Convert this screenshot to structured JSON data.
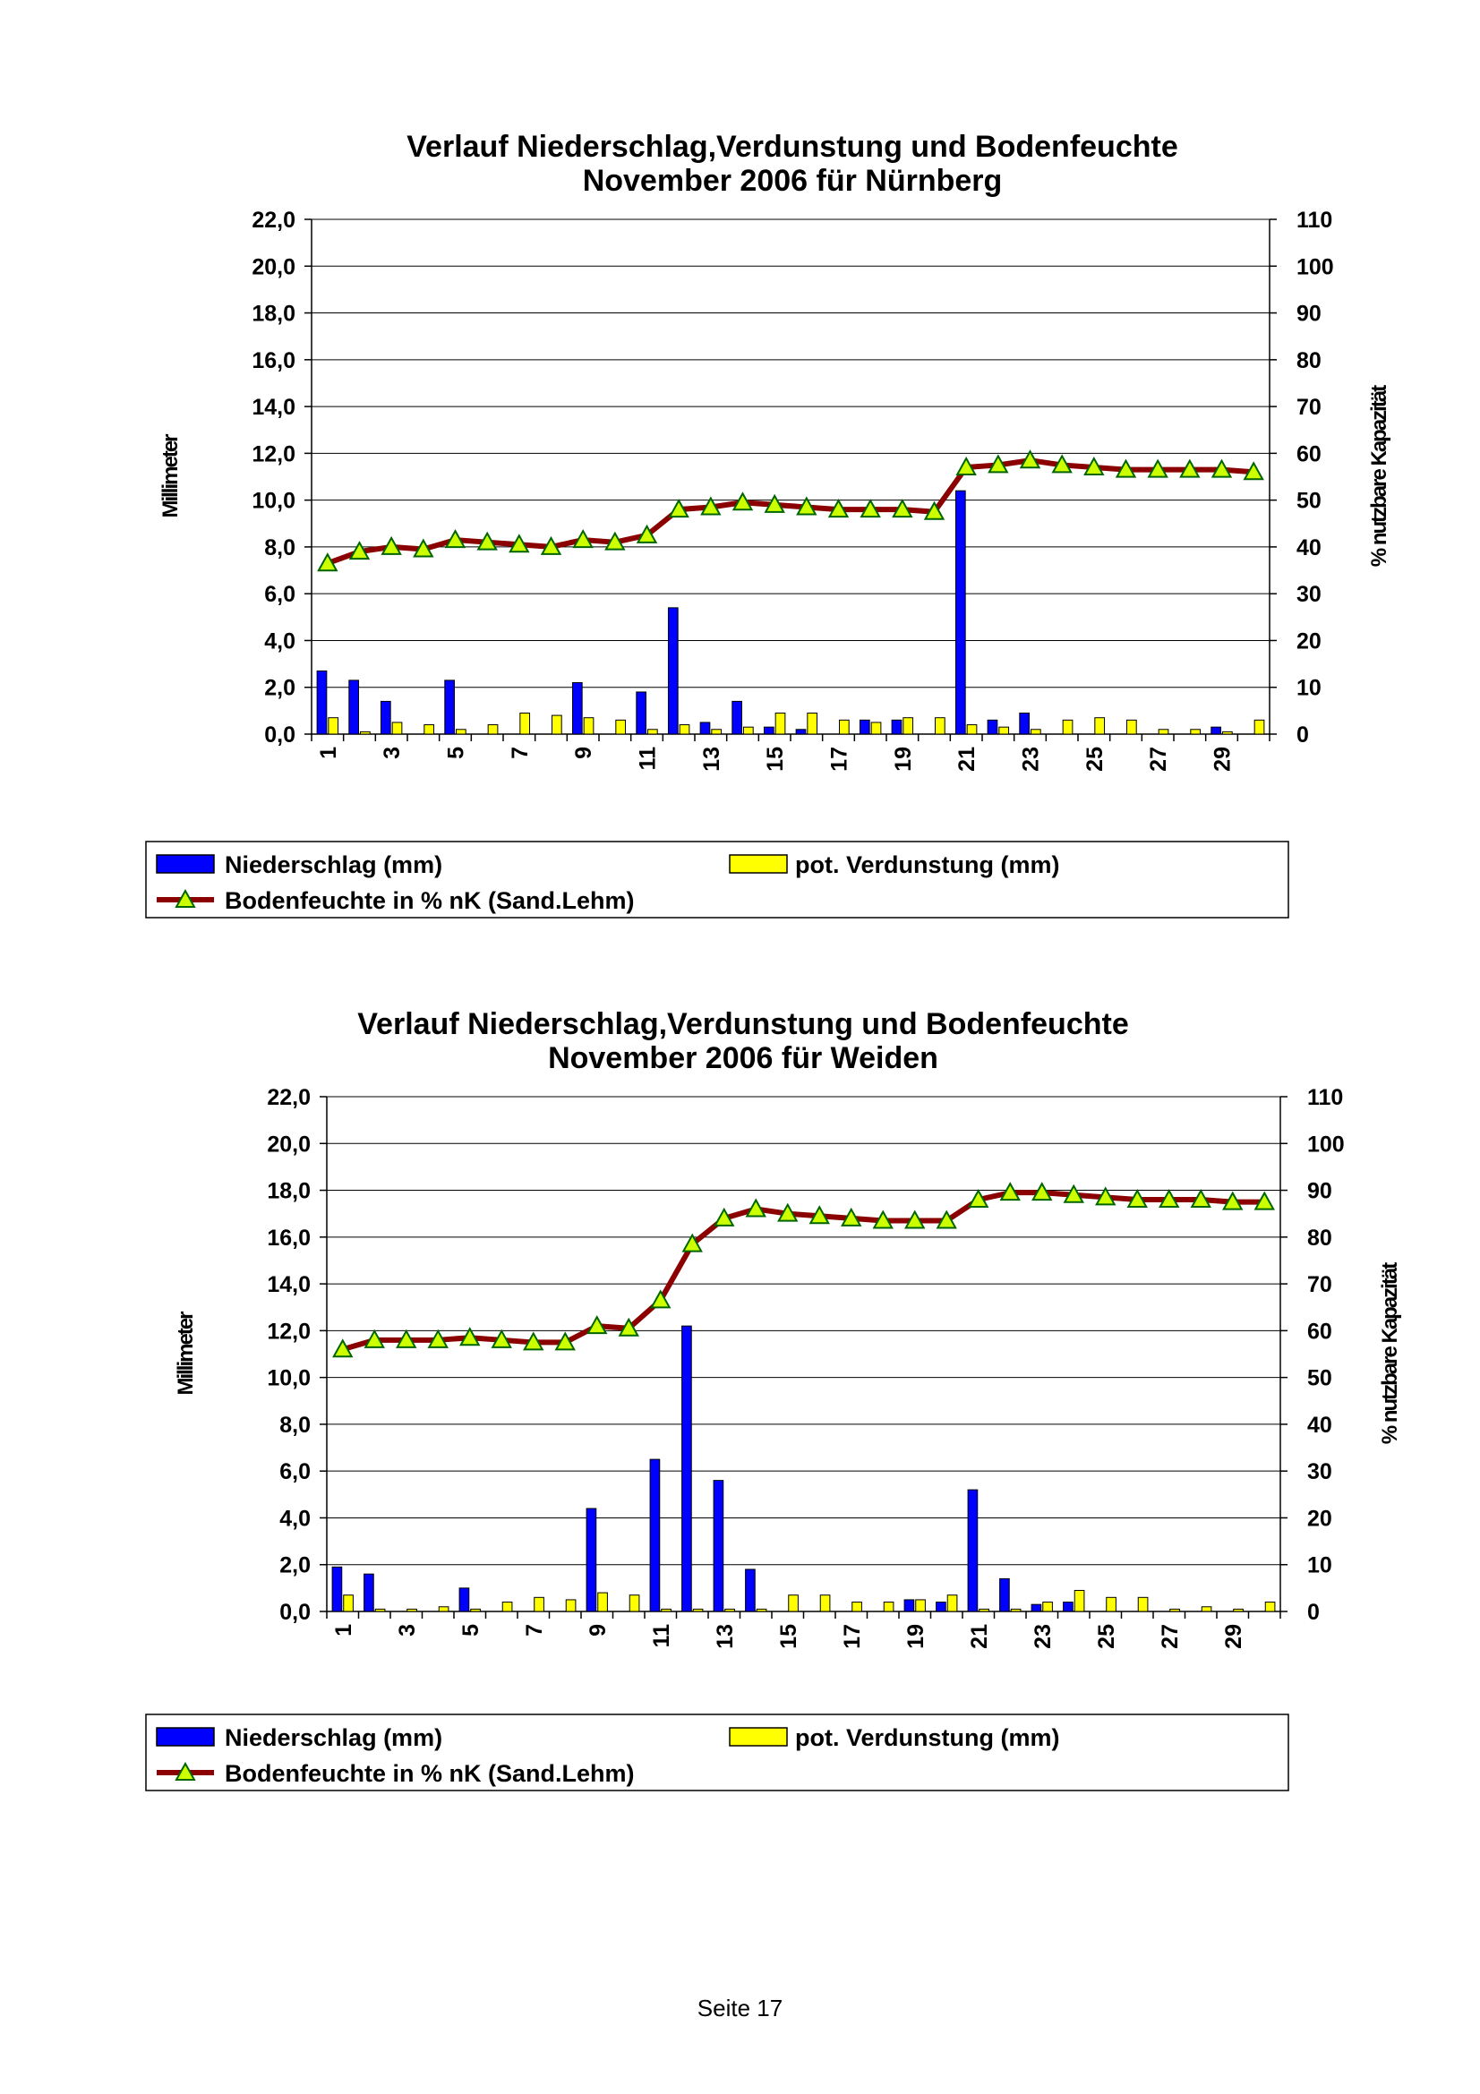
{
  "chart_data": [
    {
      "type": "bar",
      "title": [
        "Verlauf Niederschlag,Verdunstung und Bodenfeuchte",
        "November 2006 für Nürnberg"
      ],
      "ylabel": "Millimeter",
      "y2label": "% nutzbare Kapazität",
      "ylim": [
        0,
        22
      ],
      "y2lim": [
        0,
        110
      ],
      "yticks": [
        "0,0",
        "2,0",
        "4,0",
        "6,0",
        "8,0",
        "10,0",
        "12,0",
        "14,0",
        "16,0",
        "18,0",
        "20,0",
        "22,0"
      ],
      "y2ticks": [
        "0",
        "10",
        "20",
        "30",
        "40",
        "50",
        "60",
        "70",
        "80",
        "90",
        "100",
        "110"
      ],
      "xticks": [
        "1",
        "3",
        "5",
        "7",
        "9",
        "11",
        "13",
        "15",
        "17",
        "19",
        "21",
        "23",
        "25",
        "27",
        "29"
      ],
      "categories": [
        1,
        2,
        3,
        4,
        5,
        6,
        7,
        8,
        9,
        10,
        11,
        12,
        13,
        14,
        15,
        16,
        17,
        18,
        19,
        20,
        21,
        22,
        23,
        24,
        25,
        26,
        27,
        28,
        29,
        30
      ],
      "grid": true,
      "legend_placement": "bottom",
      "series": [
        {
          "name": "Niederschlag (mm)",
          "type": "bar",
          "axis": "left",
          "color": "#0000ff",
          "values": [
            2.7,
            2.3,
            1.4,
            0,
            2.3,
            0,
            0,
            0,
            2.2,
            0,
            1.8,
            5.4,
            0.5,
            1.4,
            0.3,
            0.2,
            0,
            0.6,
            0.6,
            0,
            10.4,
            0.6,
            0.9,
            0,
            0,
            0,
            0,
            0,
            0.3,
            0
          ]
        },
        {
          "name": "pot. Verdunstung (mm)",
          "type": "bar",
          "axis": "left",
          "color": "#ffff00",
          "values": [
            0.7,
            0.1,
            0.5,
            0.4,
            0.2,
            0.4,
            0.9,
            0.8,
            0.7,
            0.6,
            0.2,
            0.4,
            0.2,
            0.3,
            0.9,
            0.9,
            0.6,
            0.5,
            0.7,
            0.7,
            0.4,
            0.3,
            0.2,
            0.6,
            0.7,
            0.6,
            0.2,
            0.2,
            0.1,
            0.6
          ]
        },
        {
          "name": "Bodenfeuchte in % nK (Sand.Lehm)",
          "type": "line",
          "axis": "right",
          "color": "#8b0000",
          "marker_color": "#ccff00",
          "values": [
            36.5,
            39,
            40,
            39.5,
            41.5,
            41,
            40.5,
            40,
            41.5,
            41,
            42.5,
            48,
            48.5,
            49.5,
            49,
            48.5,
            48,
            48,
            48,
            47.5,
            57,
            57.5,
            58.5,
            57.5,
            57,
            56.5,
            56.5,
            56.5,
            56.5,
            56
          ]
        }
      ]
    },
    {
      "type": "bar",
      "title": [
        "Verlauf Niederschlag,Verdunstung und Bodenfeuchte",
        "November 2006 für Weiden"
      ],
      "ylabel": "Millimeter",
      "y2label": "% nutzbare Kapazität",
      "ylim": [
        0,
        22
      ],
      "y2lim": [
        0,
        110
      ],
      "yticks": [
        "0,0",
        "2,0",
        "4,0",
        "6,0",
        "8,0",
        "10,0",
        "12,0",
        "14,0",
        "16,0",
        "18,0",
        "20,0",
        "22,0"
      ],
      "y2ticks": [
        "0",
        "10",
        "20",
        "30",
        "40",
        "50",
        "60",
        "70",
        "80",
        "90",
        "100",
        "110"
      ],
      "xticks": [
        "1",
        "3",
        "5",
        "7",
        "9",
        "11",
        "13",
        "15",
        "17",
        "19",
        "21",
        "23",
        "25",
        "27",
        "29"
      ],
      "categories": [
        1,
        2,
        3,
        4,
        5,
        6,
        7,
        8,
        9,
        10,
        11,
        12,
        13,
        14,
        15,
        16,
        17,
        18,
        19,
        20,
        21,
        22,
        23,
        24,
        25,
        26,
        27,
        28,
        29,
        30
      ],
      "grid": true,
      "legend_placement": "bottom",
      "series": [
        {
          "name": "Niederschlag (mm)",
          "type": "bar",
          "axis": "left",
          "color": "#0000ff",
          "values": [
            1.9,
            1.6,
            0,
            0,
            1.0,
            0,
            0,
            0,
            4.4,
            0,
            6.5,
            12.2,
            5.6,
            1.8,
            0,
            0,
            0,
            0,
            0.5,
            0.4,
            5.2,
            1.4,
            0.3,
            0.4,
            0,
            0,
            0,
            0,
            0,
            0
          ]
        },
        {
          "name": "pot. Verdunstung (mm)",
          "type": "bar",
          "axis": "left",
          "color": "#ffff00",
          "values": [
            0.7,
            0.1,
            0.1,
            0.2,
            0.1,
            0.4,
            0.6,
            0.5,
            0.8,
            0.7,
            0.1,
            0.1,
            0.1,
            0.1,
            0.7,
            0.7,
            0.4,
            0.4,
            0.5,
            0.7,
            0.1,
            0.1,
            0.4,
            0.9,
            0.6,
            0.6,
            0.1,
            0.2,
            0.1,
            0.4
          ]
        },
        {
          "name": "Bodenfeuchte in % nK (Sand.Lehm)",
          "type": "line",
          "axis": "right",
          "color": "#8b0000",
          "marker_color": "#ccff00",
          "values": [
            56,
            58,
            58,
            58,
            58.5,
            58,
            57.5,
            57.5,
            61,
            60.5,
            66.5,
            78.5,
            84,
            86,
            85,
            84.5,
            84,
            83.5,
            83.5,
            83.5,
            88,
            89.5,
            89.5,
            89,
            88.5,
            88,
            88,
            88,
            87.5,
            87.5
          ]
        }
      ]
    }
  ],
  "footer": "Seite 17"
}
